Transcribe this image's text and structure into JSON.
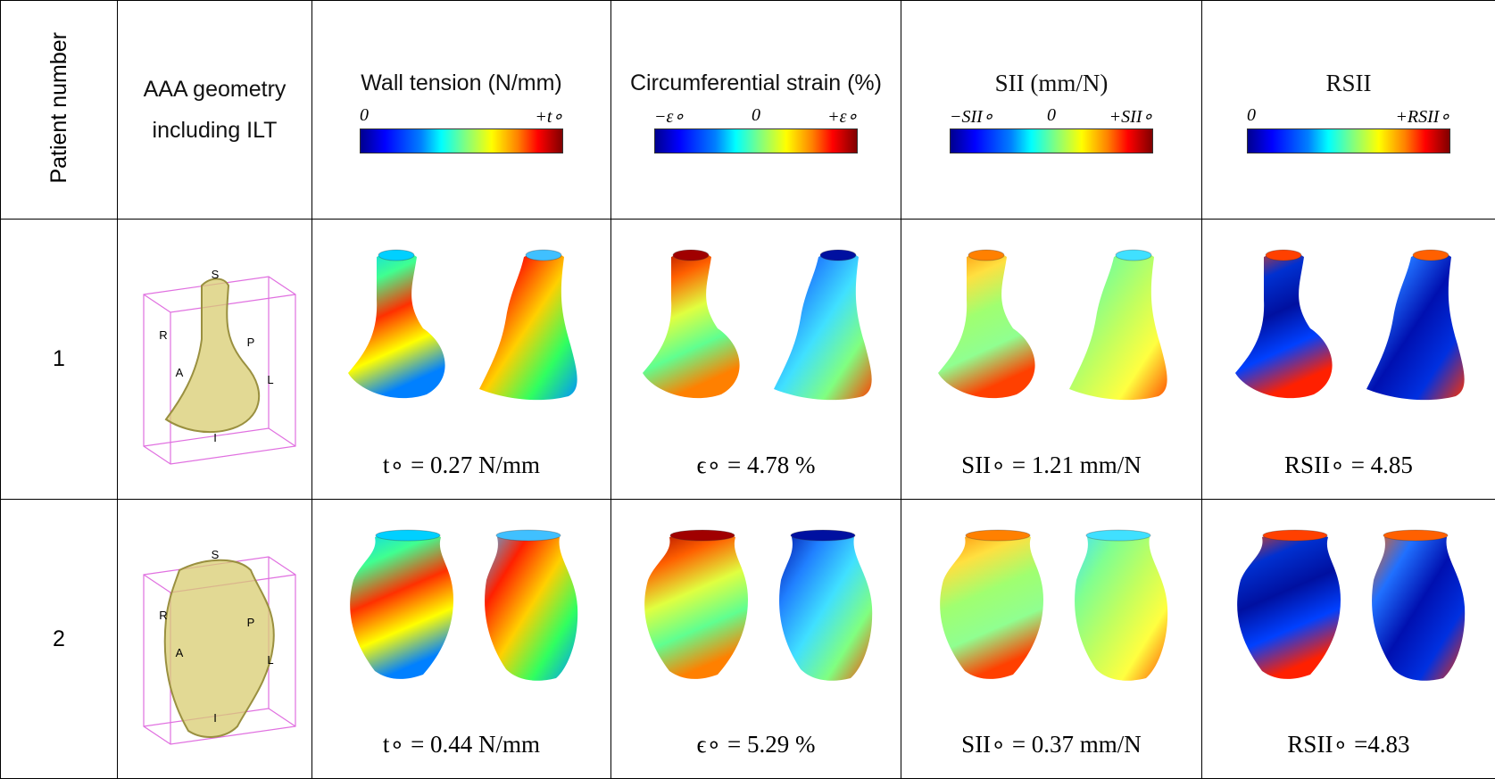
{
  "header": {
    "cells": [
      "Patient number",
      "AAA geometry including ILT",
      "Wall tension (N/mm)",
      "Circumferential strain (%)",
      "SII (mm/N)",
      "RSII"
    ]
  },
  "colorbars": [
    {
      "min": "0",
      "max": "+t∘"
    },
    {
      "min": "−ε∘",
      "mid": "0",
      "max": "+ε∘"
    },
    {
      "min": "−SII∘",
      "mid": "0",
      "max": "+SII∘"
    },
    {
      "min": "0",
      "max": "+RSII∘"
    }
  ],
  "rows": [
    {
      "patient": "1",
      "axis_labels": [
        "S",
        "R",
        "P",
        "A",
        "L",
        "I"
      ],
      "results": [
        "t∘ = 0.27 N/mm",
        "ϵ∘ = 4.78 %",
        "SII∘ = 1.21 mm/N",
        "RSII∘ = 4.85"
      ]
    },
    {
      "patient": "2",
      "axis_labels": [
        "S",
        "R",
        "P",
        "A",
        "L",
        "I"
      ],
      "results": [
        "t∘ = 0.44 N/mm",
        "ϵ∘ = 5.29 %",
        "SII∘ = 0.37 mm/N",
        "RSII∘ =4.83"
      ]
    }
  ]
}
